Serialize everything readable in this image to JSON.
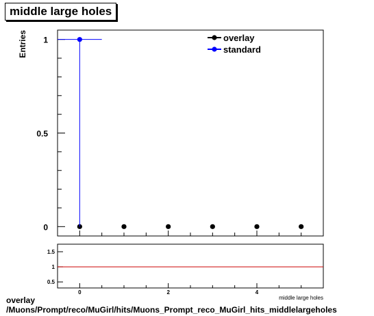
{
  "title": "middle large holes",
  "footer": {
    "line1": "overlay",
    "line2": "/Muons/Prompt/reco/MuGirl/hits/Muons_Prompt_reco_MuGirl_hits_middlelargeholes"
  },
  "chart_data": [
    {
      "type": "scatter",
      "ylabel": "Entries",
      "xlabel": "",
      "xlim": [
        -0.5,
        5.5
      ],
      "ylim": [
        -0.05,
        1.05
      ],
      "yticks": [
        0,
        0.5,
        1
      ],
      "ytick_labels": [
        "0",
        "0.5",
        "1"
      ],
      "legend_position": "top-right",
      "series": [
        {
          "name": "overlay",
          "color": "#000000",
          "x": [
            0,
            1,
            2,
            3,
            4,
            5
          ],
          "y": [
            0,
            0,
            0,
            0,
            0,
            0
          ]
        },
        {
          "name": "standard",
          "color": "#0000ff",
          "x": [
            0
          ],
          "y": [
            1
          ],
          "xerr": [
            [
              0.5,
              0.5
            ]
          ],
          "yerr": [
            [
              1,
              0
            ]
          ]
        }
      ]
    },
    {
      "type": "line",
      "xlabel": "middle large holes",
      "xlim": [
        -0.5,
        5.5
      ],
      "ylim": [
        0.3,
        1.75
      ],
      "xticks": [
        0,
        2,
        4
      ],
      "xtick_labels": [
        "0",
        "2",
        "4"
      ],
      "yticks": [
        0.5,
        1,
        1.5
      ],
      "ytick_labels": [
        "0.5",
        "1",
        "1.5"
      ],
      "series": [
        {
          "color": "#cc0000",
          "x": [
            -0.5,
            5.5
          ],
          "y": [
            1,
            1
          ]
        }
      ]
    }
  ]
}
